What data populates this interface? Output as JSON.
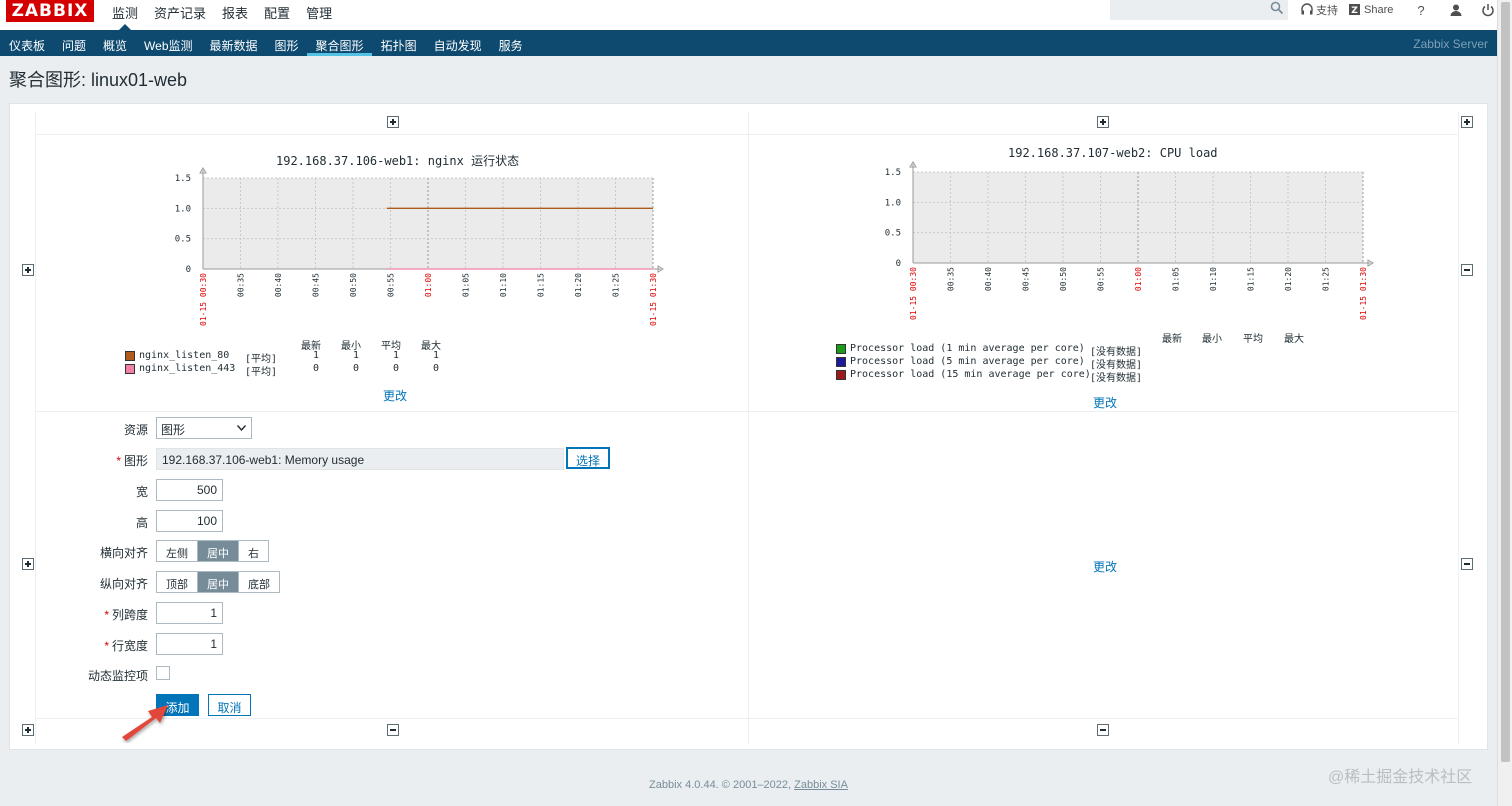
{
  "app": {
    "logo": "ZABBIX",
    "main_nav": [
      "监测",
      "资产记录",
      "报表",
      "配置",
      "管理"
    ],
    "sub_nav": [
      "仪表板",
      "问题",
      "概览",
      "Web监测",
      "最新数据",
      "图形",
      "聚合图形",
      "拓扑图",
      "自动发现",
      "服务"
    ],
    "server_name": "Zabbix Server",
    "top_links": {
      "support": "支持",
      "share": "Share",
      "help": "?"
    }
  },
  "page": {
    "title": "聚合图形: linux01-web"
  },
  "chart_data": [
    {
      "type": "line",
      "title": "192.168.37.106-web1: nginx 运行状态",
      "x": [
        "01-15 00:30",
        "00:35",
        "00:40",
        "00:45",
        "00:50",
        "00:55",
        "01:00",
        "01:05",
        "01:10",
        "01:15",
        "01:20",
        "01:25",
        "01-15 01:30"
      ],
      "yticks": [
        "1.5",
        "1.0",
        "0.5",
        "0"
      ],
      "ylim": [
        0,
        1.5
      ],
      "series": [
        {
          "name": "nginx_listen_80",
          "color": "#b05a1e",
          "start": "00:55",
          "values_const": 1,
          "func": "[平均]",
          "last": "1",
          "min": "1",
          "avg": "1",
          "max": "1"
        },
        {
          "name": "nginx_listen_443",
          "color": "#f280a6",
          "start": "00:55",
          "values_const": 0,
          "func": "[平均]",
          "last": "0",
          "min": "0",
          "avg": "0",
          "max": "0"
        }
      ],
      "legend_headers": [
        "最新",
        "最小",
        "平均",
        "最大"
      ],
      "change_link": "更改"
    },
    {
      "type": "line",
      "title": "192.168.37.107-web2: CPU load",
      "x": [
        "01-15 00:30",
        "00:35",
        "00:40",
        "00:45",
        "00:50",
        "00:55",
        "01:00",
        "01:05",
        "01:10",
        "01:15",
        "01:20",
        "01:25",
        "01-15 01:30"
      ],
      "yticks": [
        "1.5",
        "1.0",
        "0.5",
        "0"
      ],
      "ylim": [
        0,
        1.5
      ],
      "series": [
        {
          "name": "Processor load (1 min average per core)",
          "color": "#1a9b1a",
          "note": "[没有数据]"
        },
        {
          "name": "Processor load (5 min average per core)",
          "color": "#1a1a9b",
          "note": "[没有数据]"
        },
        {
          "name": "Processor load (15 min average per core)",
          "color": "#9b1a1a",
          "note": "[没有数据]"
        }
      ],
      "legend_headers": [
        "最新",
        "最小",
        "平均",
        "最大"
      ],
      "change_link": "更改"
    }
  ],
  "empty_cell": {
    "change_link": "更改"
  },
  "form": {
    "resource_label": "资源",
    "resource_value": "图形",
    "graph_label": "图形",
    "graph_value": "192.168.37.106-web1: Memory usage",
    "choose_button": "选择",
    "width_label": "宽",
    "width_value": "500",
    "height_label": "高",
    "height_value": "100",
    "halign_label": "横向对齐",
    "halign_options": [
      "左侧",
      "居中",
      "右"
    ],
    "valign_label": "纵向对齐",
    "valign_options": [
      "顶部",
      "居中",
      "底部"
    ],
    "colspan_label": "列跨度",
    "colspan_value": "1",
    "rowspan_label": "行宽度",
    "rowspan_value": "1",
    "dynamic_label": "动态监控项",
    "add_button": "添加",
    "cancel_button": "取消"
  },
  "footer": {
    "text": "Zabbix 4.0.44. © 2001–2022, ",
    "link": "Zabbix SIA"
  },
  "watermark": "@稀土掘金技术社区",
  "colors": {
    "header_blue": "#0e4a70",
    "accent": "#0275b8",
    "logo_red": "#d40000"
  }
}
